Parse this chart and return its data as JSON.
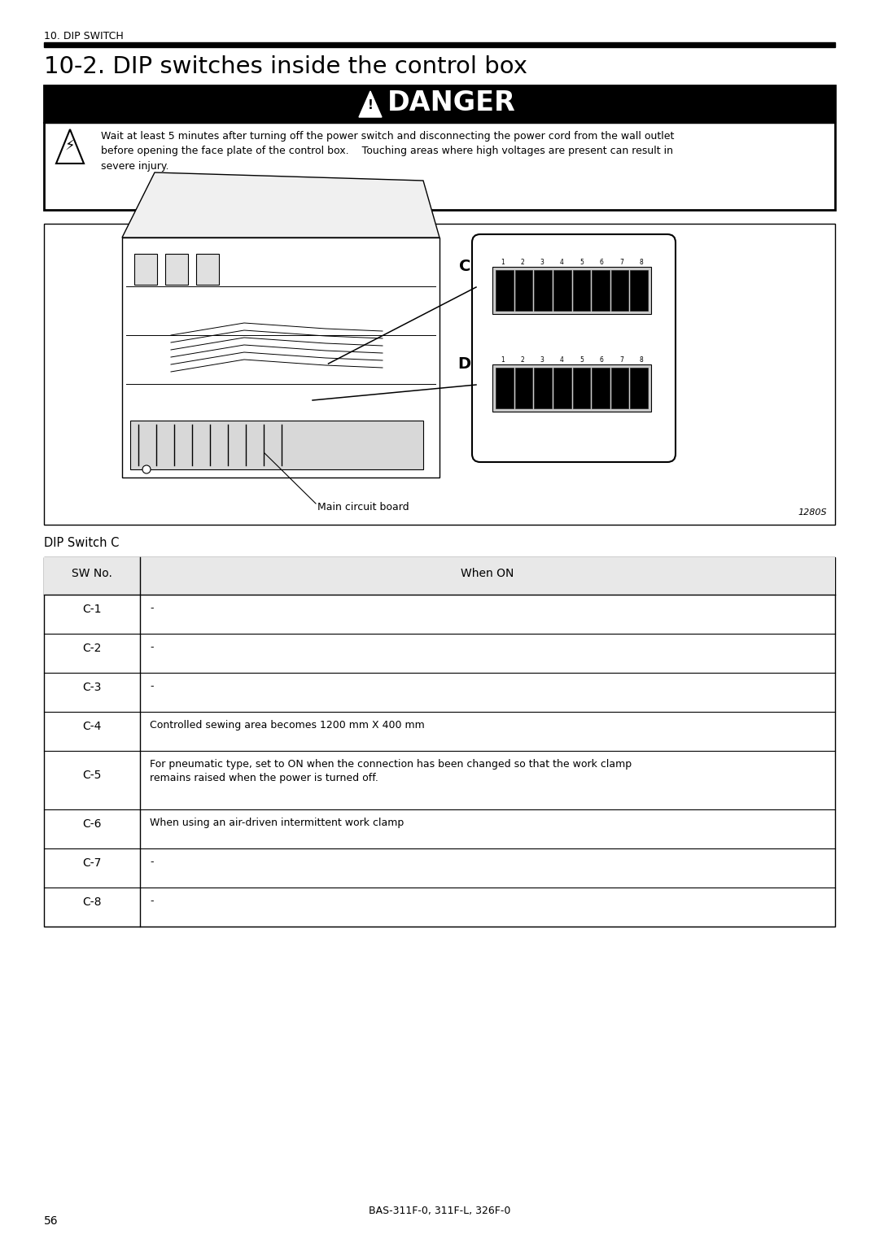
{
  "page_title_small": "10. DIP SWITCH",
  "page_title_large": "10-2. DIP switches inside the control box",
  "danger_text": "Wait at least 5 minutes after turning off the power switch and disconnecting the power cord from the wall outlet\nbefore opening the face plate of the control box.    Touching areas where high voltages are present can result in\nsevere injury.",
  "diagram_label": "1280S",
  "main_circuit_board_label": "Main circuit board",
  "dip_switch_section_title": "DIP Switch C",
  "table_header": [
    "SW No.",
    "When ON"
  ],
  "table_rows": [
    [
      "C-1",
      "-"
    ],
    [
      "C-2",
      "-"
    ],
    [
      "C-3",
      "-"
    ],
    [
      "C-4",
      "Controlled sewing area becomes 1200 mm X 400 mm"
    ],
    [
      "C-5",
      "For pneumatic type, set to ON when the connection has been changed so that the work clamp\nremains raised when the power is turned off."
    ],
    [
      "C-6",
      "When using an air-driven intermittent work clamp"
    ],
    [
      "C-7",
      "-"
    ],
    [
      "C-8",
      "-"
    ]
  ],
  "footer_text": "BAS-311F-0, 311F-L, 326F-0",
  "page_number": "56",
  "bg_color": "#ffffff"
}
